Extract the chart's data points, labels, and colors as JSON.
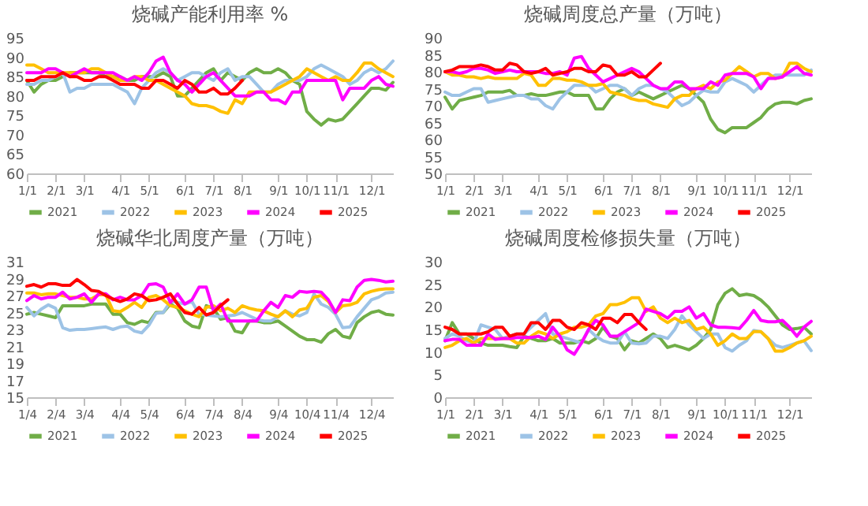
{
  "chart_data": [
    {
      "type": "line",
      "title": "烧碱产能利用率 %",
      "categories": [
        "1/1",
        null,
        null,
        null,
        "2/1",
        null,
        null,
        null,
        "3/1",
        null,
        null,
        null,
        null,
        "4/1",
        null,
        null,
        null,
        "5/1",
        null,
        null,
        null,
        null,
        "6/1",
        null,
        null,
        null,
        "7/1",
        null,
        null,
        null,
        "8/1",
        null,
        null,
        null,
        null,
        "9/1",
        null,
        null,
        null,
        "10/1",
        null,
        null,
        null,
        "11/1",
        null,
        null,
        null,
        null,
        "12/1",
        null,
        null,
        null
      ],
      "ylim": [
        60,
        95
      ],
      "yticks": [
        60,
        65,
        70,
        75,
        80,
        85,
        90,
        95
      ],
      "grid": false,
      "legend": "bottom",
      "series": [
        {
          "name": "2021",
          "color": "#70ad47",
          "values": [
            84,
            81,
            83,
            84,
            84,
            85,
            86,
            86,
            86,
            86,
            86,
            85,
            85,
            85,
            84,
            84,
            85,
            85,
            85,
            86,
            85,
            80,
            80,
            82,
            84,
            86,
            87,
            84,
            86,
            85,
            84,
            86,
            87,
            86,
            86,
            87,
            86,
            84,
            83,
            76,
            74,
            72.5,
            74,
            73.5,
            74,
            76,
            78,
            80,
            82,
            82,
            81.5,
            83.5
          ]
        },
        {
          "name": "2022",
          "color": "#9dc3e6",
          "values": [
            83,
            83,
            84,
            84,
            85,
            86,
            81,
            82,
            82,
            83,
            83,
            83,
            83,
            82,
            81,
            78,
            82,
            84,
            86,
            87,
            86,
            84,
            85,
            86,
            86,
            85,
            84,
            86,
            87,
            84,
            85,
            85,
            83,
            81,
            81,
            83,
            84,
            84,
            84,
            85,
            87,
            88,
            87,
            86,
            85,
            83,
            84,
            86,
            87,
            86,
            87,
            89
          ]
        },
        {
          "name": "2023",
          "color": "#ffc000",
          "values": [
            88,
            88,
            87,
            86,
            86,
            86,
            86,
            86,
            86,
            87,
            87,
            86,
            85,
            84,
            84,
            85,
            85,
            84,
            84,
            83,
            82,
            81,
            80,
            78,
            77.5,
            77.5,
            77,
            76,
            75.5,
            79,
            78,
            81,
            81,
            81,
            81,
            82,
            83,
            84,
            85,
            87,
            86,
            85,
            84,
            85,
            84,
            84,
            86,
            88.5,
            88.5,
            87,
            86,
            85
          ]
        },
        {
          "name": "2024",
          "color": "#ff00ff",
          "values": [
            86,
            86,
            86,
            87,
            87,
            86,
            85,
            86,
            87,
            86,
            86,
            86,
            86,
            85,
            84,
            85,
            84,
            86,
            89,
            90,
            86,
            84,
            83,
            81,
            83,
            85,
            86,
            84,
            82,
            80,
            80,
            80,
            81,
            81,
            79,
            79,
            78,
            81,
            81,
            84,
            84,
            84,
            84,
            84,
            79,
            82,
            82,
            82,
            84,
            85,
            83,
            82.5
          ]
        },
        {
          "name": "2025",
          "color": "#ff0000",
          "values": [
            84,
            84,
            85,
            85,
            85,
            86,
            85,
            85,
            84,
            84,
            85,
            85,
            84,
            83,
            83,
            83,
            82,
            82,
            84,
            84,
            83,
            82,
            84,
            83,
            81,
            81,
            82,
            80.5,
            80.5,
            82,
            84,
            null,
            null,
            null,
            null,
            null,
            null,
            null,
            null,
            null,
            null,
            null,
            null,
            null,
            null,
            null,
            null,
            null,
            null,
            null,
            null,
            null
          ]
        }
      ]
    },
    {
      "type": "line",
      "title": "烧碱周度总产量（万吨）",
      "categories": [
        "1/1",
        null,
        null,
        null,
        "2/1",
        null,
        null,
        null,
        "3/1",
        null,
        null,
        null,
        null,
        "4/1",
        null,
        null,
        null,
        "5/1",
        null,
        null,
        null,
        null,
        "6/1",
        null,
        null,
        null,
        "7/1",
        null,
        null,
        null,
        "8/1",
        null,
        null,
        null,
        null,
        "9/1",
        null,
        null,
        null,
        "10/1",
        null,
        null,
        null,
        "11/1",
        null,
        null,
        null,
        null,
        "12/1",
        null,
        null,
        null
      ],
      "ylim": [
        50,
        90
      ],
      "yticks": [
        50,
        55,
        60,
        65,
        70,
        75,
        80,
        85,
        90
      ],
      "grid": false,
      "legend": "bottom",
      "series": [
        {
          "name": "2021",
          "color": "#70ad47",
          "values": [
            72.5,
            69,
            71.5,
            72,
            72.5,
            73,
            74,
            74,
            74,
            74.5,
            73,
            73,
            73.5,
            73,
            73,
            73.5,
            74,
            74,
            73,
            73,
            73,
            69,
            69,
            72,
            74,
            75,
            73,
            74,
            73,
            72,
            73,
            74,
            75,
            76,
            75,
            73,
            71,
            66,
            63,
            62,
            63.5,
            63.5,
            63.5,
            65,
            66.5,
            69,
            70.5,
            71,
            71,
            70.5,
            71.5,
            72
          ]
        },
        {
          "name": "2022",
          "color": "#9dc3e6",
          "values": [
            74,
            73,
            73,
            74,
            75,
            75,
            71,
            71.5,
            72,
            72.5,
            73,
            73,
            72,
            72,
            70,
            69,
            72,
            74,
            76,
            76,
            76,
            74,
            75,
            76,
            76,
            75,
            73,
            75,
            76,
            76,
            75,
            74,
            72,
            70,
            71,
            73,
            74.5,
            74,
            74,
            77,
            78,
            77,
            76,
            74,
            76,
            78,
            79,
            79,
            79,
            79,
            79,
            80.5
          ]
        },
        {
          "name": "2023",
          "color": "#ffc000",
          "values": [
            80,
            79,
            79,
            78.5,
            78.5,
            78,
            78.5,
            78,
            78,
            78,
            78,
            79.5,
            79,
            76,
            76,
            78,
            78,
            77.5,
            77.5,
            77,
            76,
            76,
            76.5,
            74,
            73.5,
            73,
            72,
            71.5,
            71.5,
            70.5,
            70,
            69.5,
            72,
            73,
            73,
            75,
            76,
            75,
            77,
            77.5,
            79.5,
            81.5,
            80,
            78.5,
            79.5,
            79.5,
            78,
            78.5,
            82.5,
            82.5,
            81,
            80
          ]
        },
        {
          "name": "2024",
          "color": "#ff00ff",
          "values": [
            80,
            80,
            79.5,
            80,
            81,
            81,
            80.5,
            79.5,
            80,
            80.5,
            80,
            80,
            80,
            80,
            79.5,
            79.5,
            80,
            79,
            84,
            84.5,
            81,
            79,
            77,
            78,
            79,
            80,
            81,
            80,
            78,
            76,
            75,
            75,
            77,
            77,
            75,
            75,
            75,
            77,
            76,
            79,
            79.5,
            79.5,
            79.5,
            78.5,
            75,
            78,
            78,
            78.5,
            80,
            81.5,
            79.5,
            79
          ]
        },
        {
          "name": "2025",
          "color": "#ff0000",
          "values": [
            80,
            80.5,
            81.5,
            81.5,
            81.5,
            82,
            81.5,
            80.5,
            80.5,
            82.5,
            82,
            80,
            79.5,
            80,
            81,
            79,
            79.5,
            80,
            81,
            81,
            80,
            80,
            82,
            81.5,
            79,
            79,
            80,
            78.5,
            78.5,
            80.5,
            82.5,
            null,
            null,
            null,
            null,
            null,
            null,
            null,
            null,
            null,
            null,
            null,
            null,
            null,
            null,
            null,
            null,
            null,
            null,
            null,
            null,
            null
          ]
        }
      ]
    },
    {
      "type": "line",
      "title": "烧碱华北周度产量（万吨）",
      "categories": [
        "1/4",
        null,
        null,
        null,
        "2/4",
        null,
        null,
        null,
        "3/4",
        null,
        null,
        null,
        null,
        "4/4",
        null,
        null,
        null,
        "5/4",
        null,
        null,
        null,
        null,
        "6/4",
        null,
        null,
        null,
        "7/4",
        null,
        null,
        null,
        "8/4",
        null,
        null,
        null,
        null,
        "9/4",
        null,
        null,
        null,
        "10/4",
        null,
        null,
        null,
        "11/4",
        null,
        null,
        null,
        null,
        "12/4",
        null,
        null,
        null
      ],
      "ylim": [
        15,
        31
      ],
      "yticks": [
        15,
        17,
        19,
        21,
        23,
        25,
        27,
        29,
        31
      ],
      "grid": false,
      "legend": "bottom",
      "series": [
        {
          "name": "2021",
          "color": "#70ad47",
          "values": [
            24.8,
            25,
            24.8,
            24.6,
            24.4,
            25.8,
            25.8,
            25.8,
            25.8,
            26,
            26,
            26,
            24.8,
            24.8,
            23.8,
            23.6,
            24,
            23.8,
            25,
            25,
            26,
            25.5,
            24,
            23.4,
            23.2,
            25.8,
            25.5,
            24.2,
            24.4,
            22.8,
            22.6,
            24,
            24,
            23.8,
            23.8,
            24,
            23.4,
            22.8,
            22.2,
            21.8,
            21.8,
            21.5,
            22.5,
            23,
            22.2,
            22,
            23.8,
            24.5,
            25,
            25.2,
            24.8,
            24.7
          ]
        },
        {
          "name": "2022",
          "color": "#9dc3e6",
          "values": [
            25.6,
            24.6,
            25.4,
            25.9,
            25.5,
            23.2,
            22.9,
            23,
            23,
            23.1,
            23.2,
            23.3,
            23,
            23.3,
            23.4,
            22.8,
            22.6,
            23.5,
            24.9,
            25,
            26.3,
            26.2,
            26,
            26.3,
            24.8,
            24.7,
            24.6,
            24.5,
            24.6,
            24.7,
            25,
            24.6,
            24.2,
            24,
            24,
            24.5,
            25.2,
            24.8,
            24.6,
            25,
            27.2,
            26,
            25.6,
            24.8,
            23.2,
            23.3,
            24.5,
            25.5,
            26.5,
            26.8,
            27.3,
            27.4
          ]
        },
        {
          "name": "2023",
          "color": "#ffc000",
          "values": [
            27.3,
            27.3,
            27.1,
            27.2,
            27.2,
            27,
            26.8,
            26.8,
            26.6,
            26.6,
            27.1,
            27.1,
            25.2,
            25.1,
            25.6,
            26.2,
            25.6,
            26.8,
            27,
            26.5,
            25.8,
            25.6,
            25.2,
            24.8,
            24.5,
            25.6,
            25.8,
            25.2,
            25.5,
            25,
            25.8,
            25.5,
            25.3,
            25.2,
            24.8,
            24.5,
            25.2,
            24.5,
            25.3,
            25.5,
            26.8,
            27,
            26.3,
            25,
            25.8,
            25.9,
            26.2,
            27.2,
            27.5,
            27.7,
            27.8,
            27.8
          ]
        },
        {
          "name": "2024",
          "color": "#ff00ff",
          "values": [
            26.4,
            27,
            26.6,
            26.8,
            26.8,
            27.4,
            26.6,
            26.8,
            27.2,
            26.2,
            27.2,
            27.2,
            26.5,
            26.8,
            26.5,
            26.5,
            27,
            28.3,
            28.4,
            28,
            26.2,
            27.2,
            26,
            26.5,
            28,
            28,
            25.2,
            26,
            24,
            24,
            24,
            24,
            24,
            25.2,
            26.2,
            25.6,
            27,
            26.8,
            27.5,
            27.4,
            27.5,
            27.4,
            26.5,
            25,
            26.5,
            26.4,
            28,
            28.8,
            28.9,
            28.8,
            28.6,
            28.7
          ]
        },
        {
          "name": "2025",
          "color": "#ff0000",
          "values": [
            28.1,
            28.3,
            28,
            28.4,
            28.4,
            28.2,
            28.2,
            28.9,
            28.3,
            27.6,
            27.5,
            27,
            26.6,
            26.3,
            26.6,
            27.2,
            27,
            26.4,
            26.5,
            26.8,
            27.2,
            26,
            25,
            24.8,
            25.6,
            24.7,
            25,
            25.8,
            26.5,
            null,
            null,
            null,
            null,
            null,
            null,
            null,
            null,
            null,
            null,
            null,
            null,
            null,
            null,
            null,
            null,
            null,
            null,
            null,
            null,
            null,
            null,
            null
          ]
        }
      ]
    },
    {
      "type": "line",
      "title": "烧碱周度检修损失量（万吨）",
      "categories": [
        "1/1",
        null,
        null,
        null,
        "2/1",
        null,
        null,
        null,
        "3/1",
        null,
        null,
        null,
        null,
        "4/1",
        null,
        null,
        null,
        "5/1",
        null,
        null,
        null,
        null,
        "6/1",
        null,
        null,
        null,
        "7/1",
        null,
        null,
        null,
        "8/1",
        null,
        null,
        null,
        null,
        "9/1",
        null,
        null,
        null,
        "10/1",
        null,
        null,
        null,
        "11/1",
        null,
        null,
        null,
        null,
        "12/1",
        null,
        null,
        null
      ],
      "ylim": [
        0,
        30
      ],
      "yticks": [
        0,
        5,
        10,
        15,
        20,
        25,
        30
      ],
      "grid": false,
      "legend": "bottom",
      "series": [
        {
          "name": "2021",
          "color": "#70ad47",
          "values": [
            12.5,
            16.5,
            14,
            14,
            13,
            12,
            11.5,
            11.5,
            11.5,
            11.2,
            11,
            13.5,
            13,
            12.5,
            12.5,
            13,
            12,
            12,
            12,
            12.5,
            12,
            13,
            15.5,
            13.5,
            13,
            10.5,
            12.5,
            12,
            13,
            14,
            13,
            11,
            11.5,
            11,
            10.5,
            11.5,
            13,
            15,
            20.5,
            23,
            24,
            22.5,
            22.8,
            22.5,
            21.5,
            20,
            18,
            16,
            15,
            15.2,
            15.5,
            14
          ]
        },
        {
          "name": "2022",
          "color": "#9dc3e6",
          "values": [
            13,
            14,
            13.5,
            12.5,
            12,
            16,
            15.5,
            15,
            13,
            13.5,
            14,
            14,
            15.5,
            17,
            18.5,
            14,
            13.5,
            13,
            12.5,
            12,
            15,
            13.5,
            12.5,
            12,
            12,
            14.5,
            12,
            11.8,
            12,
            13.5,
            13.5,
            13,
            15,
            18,
            16,
            14.5,
            13,
            14,
            14,
            11,
            10.2,
            11.5,
            12.5,
            14.8,
            14.5,
            13,
            11.5,
            11,
            11.5,
            12,
            12.5,
            10.3
          ]
        },
        {
          "name": "2023",
          "color": "#ffc000",
          "values": [
            11,
            11.5,
            12.5,
            13,
            12,
            13,
            13,
            13,
            13,
            13,
            12,
            12,
            13.5,
            14.5,
            14,
            13,
            14,
            14.5,
            15.5,
            15.5,
            16,
            18,
            18.5,
            20.5,
            20.5,
            21,
            22,
            22,
            19,
            20,
            17.5,
            16.5,
            17.5,
            16.5,
            17,
            15,
            15.5,
            14,
            11.5,
            12.5,
            14,
            13,
            13,
            14.5,
            14.5,
            13,
            10.2,
            10.2,
            11,
            12,
            12.5,
            13.5
          ]
        },
        {
          "name": "2024",
          "color": "#ff00ff",
          "values": [
            12.5,
            12.8,
            12.8,
            11.5,
            11.5,
            11.5,
            14,
            12.8,
            13,
            13,
            13.2,
            13.2,
            13.2,
            13.5,
            12.8,
            15.5,
            13.5,
            10.5,
            9.5,
            12,
            15,
            17,
            16,
            13.5,
            13.5,
            14.5,
            15.5,
            16.5,
            19.5,
            19,
            18.5,
            17.5,
            19,
            19,
            20,
            17.5,
            18.5,
            16,
            15.5,
            15.5,
            15.4,
            15.2,
            17,
            19.2,
            17,
            16.7,
            16.7,
            17,
            15.5,
            13.5,
            15.5,
            16.8
          ]
        },
        {
          "name": "2025",
          "color": "#ff0000",
          "values": [
            15.5,
            15,
            14,
            14,
            14,
            14,
            14.5,
            15.5,
            15.5,
            13.5,
            14,
            14,
            16.5,
            16.5,
            15,
            17,
            17,
            15.5,
            15,
            16.5,
            16,
            15,
            17.5,
            17.5,
            16.5,
            18.3,
            18.3,
            16.5,
            15,
            null,
            null,
            null,
            null,
            null,
            null,
            null,
            null,
            null,
            null,
            null,
            null,
            null,
            null,
            null,
            null,
            null,
            null,
            null,
            null,
            null,
            null,
            null
          ]
        }
      ]
    }
  ]
}
